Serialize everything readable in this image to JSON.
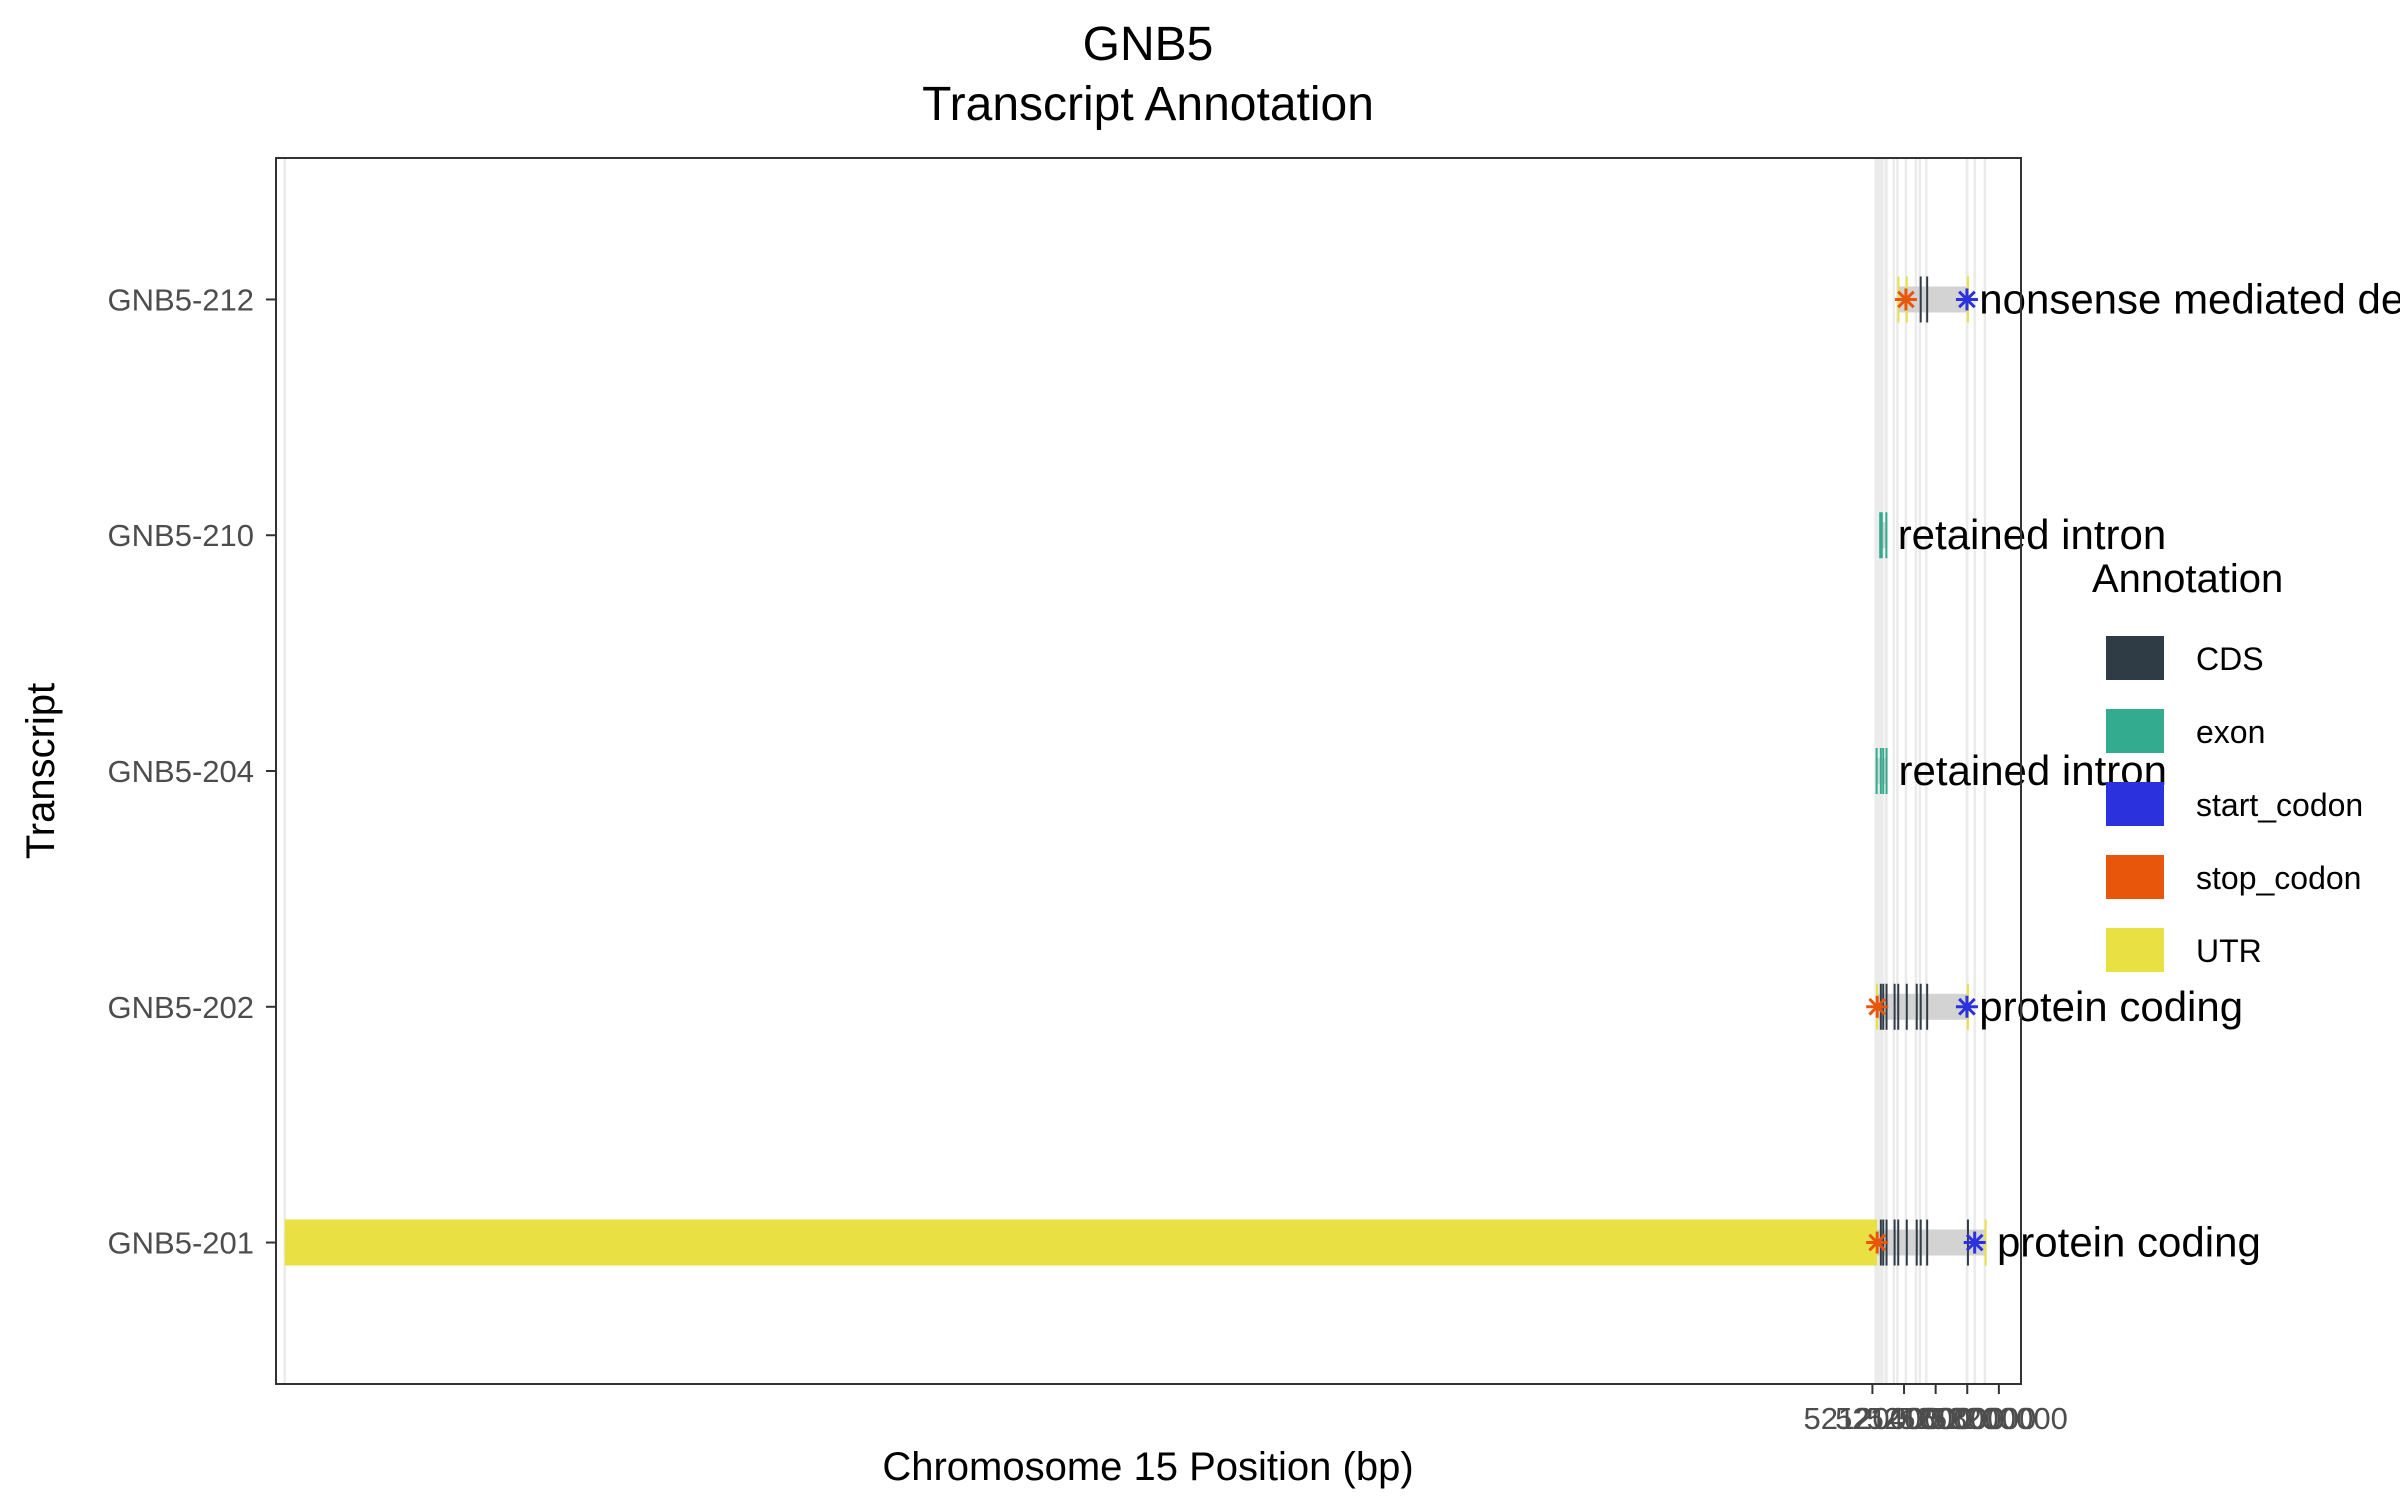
{
  "chart_data": {
    "type": "bar",
    "title": [
      "GNB5",
      "Transcript Annotation"
    ],
    "xlabel": "Chromosome 15 Position (bp)",
    "ylabel": "Transcript",
    "xlim": [
      51110000,
      52214000
    ],
    "x_ticks": [
      52120000,
      52140000,
      52160000,
      52180000,
      52200000
    ],
    "x_tick_labels": [
      "52120000",
      "52140000",
      "52160000",
      "52180000",
      "52200000"
    ],
    "grid": true,
    "grid_lines_x": [
      51115500,
      52122000,
      52123000,
      52124300,
      52124800,
      52125300,
      52126300,
      52128400,
      52128900,
      52133500,
      52135800,
      52141200,
      52147500,
      52150000,
      52154100,
      52179800,
      52180000,
      52184700,
      52191200
    ],
    "legend": {
      "title": "Annotation",
      "placement": "right",
      "entries": [
        {
          "label": "CDS",
          "color": "#2f3b45"
        },
        {
          "label": "exon",
          "color": "#33ab8f"
        },
        {
          "label": "start_codon",
          "color": "#2b31dd"
        },
        {
          "label": "stop_codon",
          "color": "#e8560c"
        },
        {
          "label": "UTR",
          "color": "#e9e044"
        }
      ]
    },
    "transcript_body_color": "#d3d3d3",
    "transcripts": [
      {
        "name": "GNB5-201",
        "label": "protein coding",
        "start": 51115500,
        "end": 52191200,
        "features": [
          {
            "type": "UTR",
            "start": 51115500,
            "end": 52123000
          },
          {
            "type": "CDS",
            "start": 52124700,
            "end": 52124900
          },
          {
            "type": "CDS",
            "start": 52126200,
            "end": 52126400
          },
          {
            "type": "CDS",
            "start": 52128300,
            "end": 52128500
          },
          {
            "type": "CDS",
            "start": 52133400,
            "end": 52133600
          },
          {
            "type": "CDS",
            "start": 52135700,
            "end": 52135900
          },
          {
            "type": "CDS",
            "start": 52141100,
            "end": 52141300
          },
          {
            "type": "CDS",
            "start": 52147400,
            "end": 52147600
          },
          {
            "type": "CDS",
            "start": 52149900,
            "end": 52150100
          },
          {
            "type": "CDS",
            "start": 52154000,
            "end": 52154200
          },
          {
            "type": "CDS",
            "start": 52179800,
            "end": 52180000
          },
          {
            "type": "UTR",
            "start": 52191000,
            "end": 52191200
          }
        ],
        "stop_codon": 52123000,
        "start_codon": 52184700
      },
      {
        "name": "GNB5-202",
        "label": "protein coding",
        "start": 52122300,
        "end": 52180000,
        "features": [
          {
            "type": "UTR",
            "start": 52122300,
            "end": 52123000
          },
          {
            "type": "CDS",
            "start": 52124700,
            "end": 52124900
          },
          {
            "type": "CDS",
            "start": 52126200,
            "end": 52126400
          },
          {
            "type": "CDS",
            "start": 52128300,
            "end": 52128500
          },
          {
            "type": "CDS",
            "start": 52133400,
            "end": 52133600
          },
          {
            "type": "CDS",
            "start": 52135700,
            "end": 52135900
          },
          {
            "type": "CDS",
            "start": 52141100,
            "end": 52141300
          },
          {
            "type": "CDS",
            "start": 52147400,
            "end": 52147600
          },
          {
            "type": "CDS",
            "start": 52149900,
            "end": 52150100
          },
          {
            "type": "CDS",
            "start": 52154000,
            "end": 52154200
          },
          {
            "type": "UTR",
            "start": 52179800,
            "end": 52180000
          }
        ],
        "stop_codon": 52123000,
        "start_codon": 52179800
      },
      {
        "name": "GNB5-204",
        "label": "retained intron",
        "start": 52122000,
        "end": 52128900,
        "features": [
          {
            "type": "exon",
            "start": 52122000,
            "end": 52123300
          },
          {
            "type": "exon",
            "start": 52124700,
            "end": 52124900
          },
          {
            "type": "exon",
            "start": 52126200,
            "end": 52126400
          },
          {
            "type": "exon",
            "start": 52128300,
            "end": 52128900
          }
        ]
      },
      {
        "name": "GNB5-210",
        "label": "retained intron",
        "start": 52124300,
        "end": 52128400,
        "features": [
          {
            "type": "exon",
            "start": 52124300,
            "end": 52124500
          },
          {
            "type": "exon",
            "start": 52125300,
            "end": 52126300
          },
          {
            "type": "exon",
            "start": 52128200,
            "end": 52128400
          }
        ]
      },
      {
        "name": "GNB5-212",
        "label": "nonsense mediated decay",
        "start": 52135800,
        "end": 52180000,
        "features": [
          {
            "type": "UTR",
            "start": 52135800,
            "end": 52135950
          },
          {
            "type": "UTR",
            "start": 52141100,
            "end": 52141300
          },
          {
            "type": "CDS",
            "start": 52149900,
            "end": 52150100
          },
          {
            "type": "CDS",
            "start": 52154000,
            "end": 52154200
          },
          {
            "type": "UTR",
            "start": 52179800,
            "end": 52180000
          }
        ],
        "stop_codon": 52141200,
        "start_codon": 52179800
      }
    ]
  }
}
